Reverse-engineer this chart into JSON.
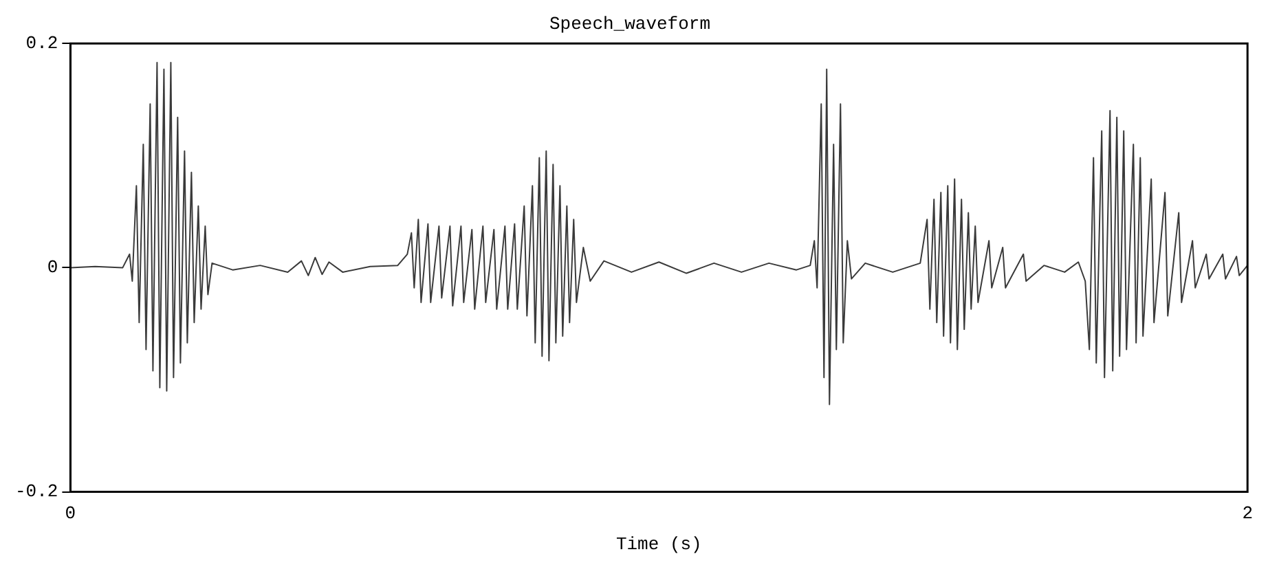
{
  "chart_data": {
    "type": "line",
    "title": "Speech_waveform",
    "xlabel": "Time (s)",
    "xlim": [
      0,
      2
    ],
    "xticks": [
      0,
      2
    ],
    "ylim": [
      -0.2,
      0.2
    ],
    "yticks": [
      -0.2,
      0,
      0.2
    ],
    "grid": false,
    "legend": false,
    "marker": "none",
    "line_style": "solid",
    "series": [
      {
        "color": "#3a3a3a",
        "x": [
          0,
          0.042,
          0.0888,
          0.1005,
          0.1051,
          0.1121,
          0.1168,
          0.1238,
          0.1285,
          0.1355,
          0.1402,
          0.1472,
          0.1519,
          0.1589,
          0.1636,
          0.1706,
          0.1752,
          0.1822,
          0.1869,
          0.1939,
          0.1986,
          0.2056,
          0.2103,
          0.2173,
          0.222,
          0.229,
          0.2336,
          0.2407,
          0.2757,
          0.3224,
          0.3692,
          0.3925,
          0.4042,
          0.4159,
          0.4276,
          0.4393,
          0.4626,
          0.5093,
          0.5561,
          0.5724,
          0.5794,
          0.5841,
          0.5911,
          0.5958,
          0.6075,
          0.6121,
          0.6262,
          0.6308,
          0.6449,
          0.6495,
          0.6636,
          0.6682,
          0.6822,
          0.6869,
          0.7009,
          0.7056,
          0.7196,
          0.7243,
          0.7383,
          0.743,
          0.7547,
          0.7593,
          0.771,
          0.7757,
          0.785,
          0.7897,
          0.7967,
          0.8014,
          0.8084,
          0.8131,
          0.8201,
          0.8248,
          0.8318,
          0.8364,
          0.8435,
          0.8481,
          0.8551,
          0.8598,
          0.8715,
          0.8832,
          0.9065,
          0.9533,
          1.0,
          1.0467,
          1.0935,
          1.1402,
          1.1869,
          1.2336,
          1.257,
          1.264,
          1.2687,
          1.2757,
          1.2804,
          1.285,
          1.2897,
          1.2967,
          1.3014,
          1.3084,
          1.3131,
          1.3201,
          1.3271,
          1.3505,
          1.3972,
          1.4439,
          1.4556,
          1.4603,
          1.4673,
          1.472,
          1.479,
          1.4836,
          1.4907,
          1.4953,
          1.5023,
          1.507,
          1.514,
          1.5187,
          1.5257,
          1.5304,
          1.5374,
          1.5421,
          1.5607,
          1.5654,
          1.5841,
          1.5888,
          1.6192,
          1.6238,
          1.6542,
          1.6893,
          1.7126,
          1.7243,
          1.7313,
          1.7383,
          1.743,
          1.7523,
          1.757,
          1.7664,
          1.771,
          1.778,
          1.7827,
          1.7897,
          1.7944,
          1.8061,
          1.8107,
          1.8178,
          1.8224,
          1.8364,
          1.8411,
          1.8598,
          1.8645,
          1.8832,
          1.8879,
          1.9065,
          1.9112,
          1.9299,
          1.9346,
          1.958,
          1.9626,
          1.9813,
          1.986,
          2.0
        ],
        "values": [
          0,
          0.001,
          0,
          0.012,
          -0.012,
          0.073,
          -0.049,
          0.11,
          -0.073,
          0.146,
          -0.092,
          0.183,
          -0.107,
          0.177,
          -0.11,
          0.183,
          -0.098,
          0.134,
          -0.085,
          0.104,
          -0.067,
          0.085,
          -0.049,
          0.055,
          -0.037,
          0.037,
          -0.024,
          0.004,
          -0.002,
          0.002,
          -0.004,
          0.006,
          -0.007,
          0.009,
          -0.006,
          0.005,
          -0.004,
          0.001,
          0.002,
          0.012,
          0.031,
          -0.018,
          0.043,
          -0.031,
          0.039,
          -0.031,
          0.037,
          -0.027,
          0.037,
          -0.034,
          0.037,
          -0.031,
          0.034,
          -0.037,
          0.037,
          -0.031,
          0.034,
          -0.037,
          0.037,
          -0.037,
          0.039,
          -0.037,
          0.055,
          -0.043,
          0.073,
          -0.067,
          0.098,
          -0.079,
          0.104,
          -0.083,
          0.092,
          -0.067,
          0.073,
          -0.061,
          0.055,
          -0.049,
          0.043,
          -0.031,
          0.018,
          -0.012,
          0.006,
          -0.004,
          0.005,
          -0.005,
          0.004,
          -0.004,
          0.004,
          -0.002,
          0.002,
          0.024,
          -0.018,
          0.146,
          -0.098,
          0.177,
          -0.122,
          0.11,
          -0.073,
          0.146,
          -0.067,
          0.024,
          -0.01,
          0.004,
          -0.004,
          0.004,
          0.043,
          -0.037,
          0.061,
          -0.049,
          0.067,
          -0.061,
          0.073,
          -0.067,
          0.079,
          -0.073,
          0.061,
          -0.055,
          0.049,
          -0.037,
          0.037,
          -0.031,
          0.024,
          -0.018,
          0.018,
          -0.018,
          0.012,
          -0.012,
          0.002,
          -0.004,
          0.005,
          -0.012,
          -0.073,
          0.098,
          -0.085,
          0.122,
          -0.098,
          0.14,
          -0.092,
          0.134,
          -0.079,
          0.122,
          -0.073,
          0.11,
          -0.067,
          0.098,
          -0.061,
          0.079,
          -0.049,
          0.067,
          -0.043,
          0.049,
          -0.031,
          0.024,
          -0.018,
          0.012,
          -0.01,
          0.012,
          -0.01,
          0.01,
          -0.007,
          0.002
        ]
      }
    ]
  }
}
